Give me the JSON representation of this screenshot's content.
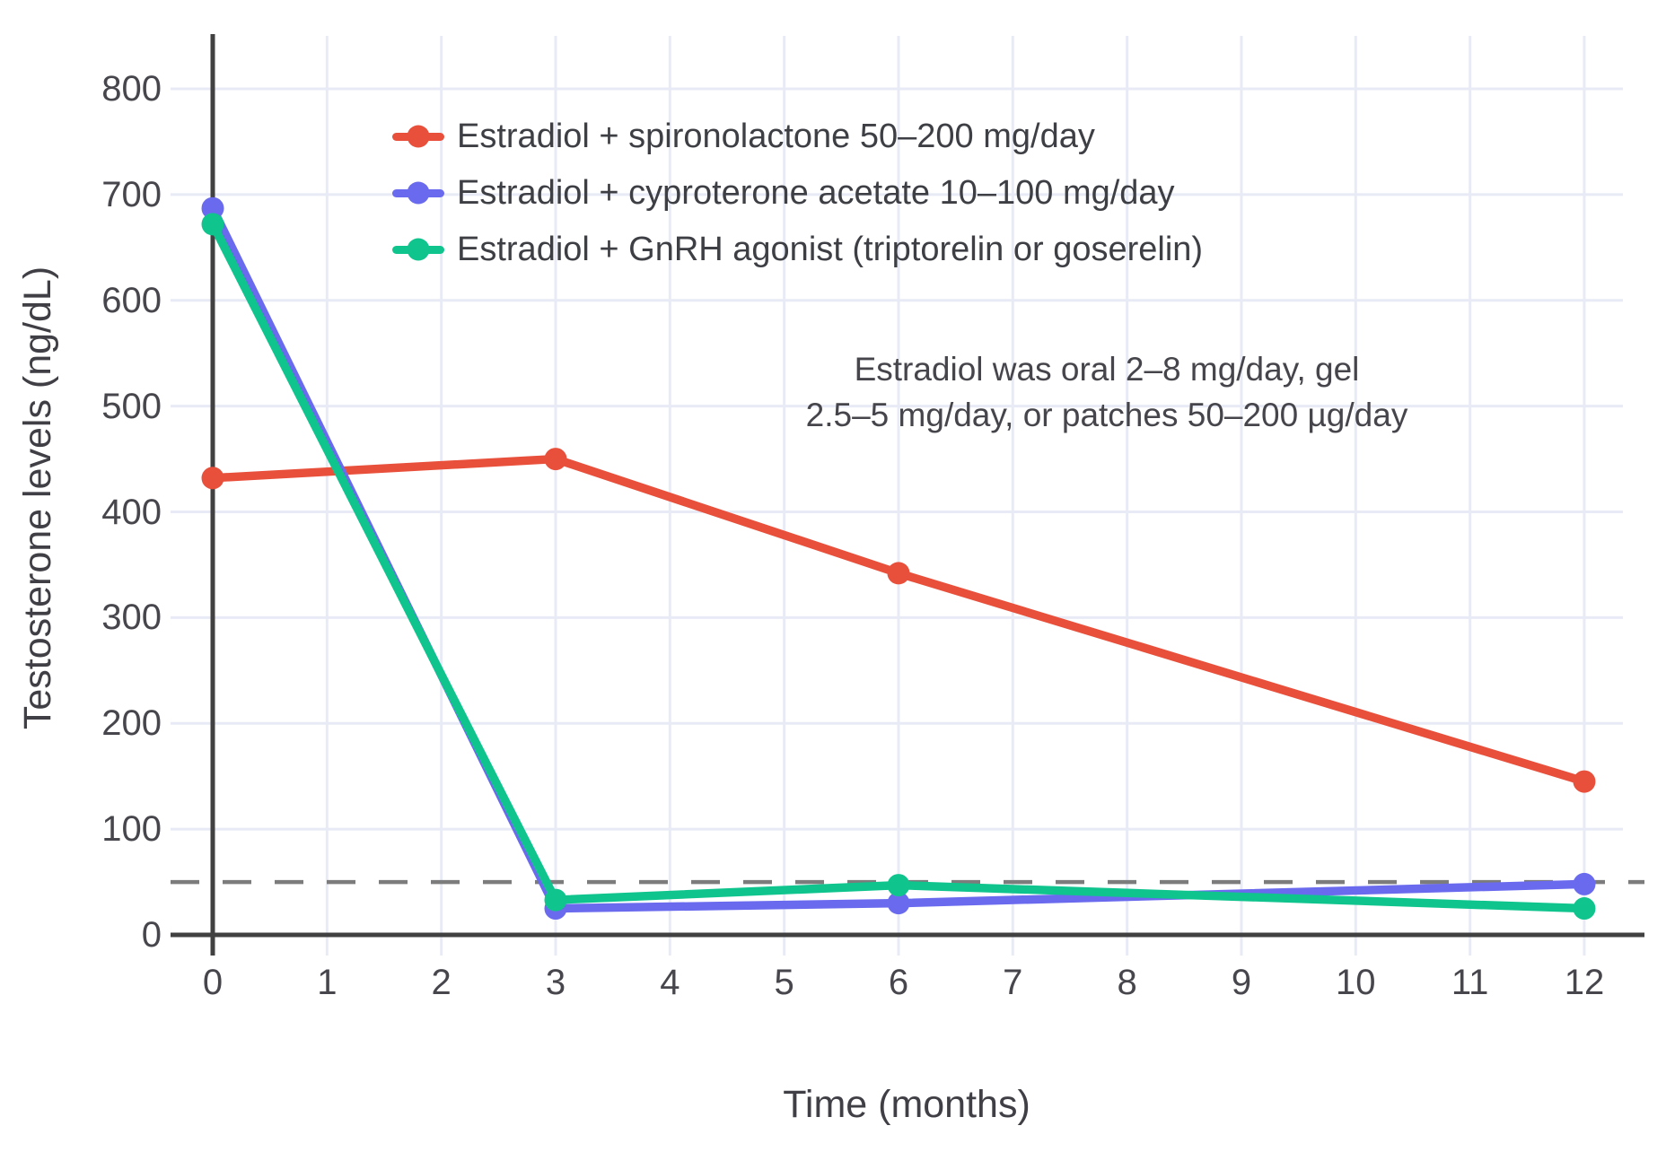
{
  "colors": {
    "background": "#ffffff",
    "grid": "#e8ebf6",
    "axis": "#414141",
    "tick_text": "#46464c",
    "text": "#3f3f45"
  },
  "chart_data": {
    "type": "line",
    "title": "",
    "xlabel": "Time (months)",
    "ylabel": "Testosterone levels (ng/dL)",
    "x_ticks": [
      0,
      1,
      2,
      3,
      4,
      5,
      6,
      7,
      8,
      9,
      10,
      11,
      12
    ],
    "y_ticks": [
      0,
      100,
      200,
      300,
      400,
      500,
      600,
      700,
      800
    ],
    "xlim": [
      0,
      12
    ],
    "ylim": [
      0,
      850
    ],
    "grid": true,
    "legend_position": "top-left-inside",
    "x": [
      0,
      3,
      6,
      12
    ],
    "series": [
      {
        "id": "spironolactone",
        "name": "Estradiol + spironolactone 50–200 mg/day",
        "color": "#e8503c",
        "values": [
          432,
          450,
          342,
          145
        ]
      },
      {
        "id": "cyproterone",
        "name": "Estradiol + cyproterone acetate 10–100 mg/day",
        "color": "#6a6aee",
        "values": [
          687,
          25,
          30,
          48
        ]
      },
      {
        "id": "gnrh-agonist",
        "name": "Estradiol + GnRH agonist (triptorelin or goserelin)",
        "color": "#10c48e",
        "values": [
          672,
          33,
          47,
          25
        ]
      }
    ],
    "reference_line": {
      "value": 50,
      "style": "dashed",
      "color": "#7c7c7c"
    },
    "annotation": {
      "line1": "Estradiol was oral 2–8 mg/day, gel",
      "line2": "2.5–5 mg/day, or patches 50–200 µg/day"
    }
  }
}
